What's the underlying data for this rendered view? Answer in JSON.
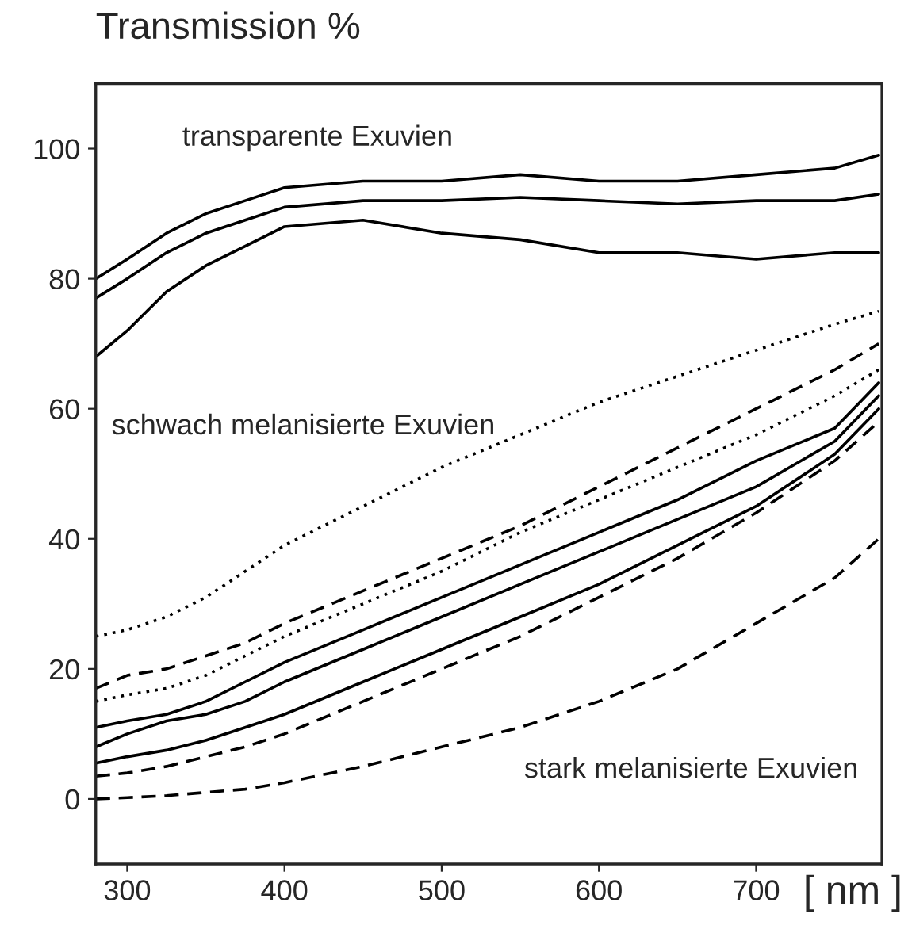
{
  "chart_data": {
    "type": "line",
    "title": "Transmission %",
    "xlabel": "[ nm ]",
    "x": [
      280,
      300,
      325,
      350,
      375,
      400,
      450,
      500,
      550,
      600,
      650,
      700,
      750,
      778
    ],
    "series": [
      {
        "color": "#000000",
        "line_style": "solid",
        "values": [
          77,
          80,
          84,
          87,
          89,
          91,
          92,
          92,
          92.5,
          92,
          91.5,
          92,
          92,
          93
        ]
      },
      {
        "color": "#000000",
        "line_style": "solid",
        "values": [
          80,
          83,
          87,
          90,
          92,
          94,
          95,
          95,
          96,
          95,
          95,
          96,
          97,
          99
        ]
      },
      {
        "color": "#000000",
        "line_style": "solid",
        "values": [
          68,
          72,
          78,
          82,
          85,
          88,
          89,
          87,
          86,
          84,
          84,
          83,
          84,
          84
        ]
      },
      {
        "color": "#000000",
        "line_style": "dotted",
        "values": [
          25,
          26,
          28,
          31,
          35,
          39,
          45,
          51,
          56,
          61,
          65,
          69,
          73,
          75
        ]
      },
      {
        "color": "#000000",
        "line_style": "dashed",
        "values": [
          17,
          19,
          20,
          22,
          24,
          27,
          32,
          37,
          42,
          48,
          54,
          60,
          66,
          70
        ]
      },
      {
        "color": "#000000",
        "line_style": "dotted",
        "values": [
          15,
          16,
          17,
          19,
          22,
          25,
          30,
          35,
          41,
          46,
          51,
          56,
          62,
          66
        ]
      },
      {
        "color": "#000000",
        "line_style": "solid",
        "values": [
          11,
          12,
          13,
          15,
          18,
          21,
          26,
          31,
          36,
          41,
          46,
          52,
          57,
          64
        ]
      },
      {
        "color": "#000000",
        "line_style": "solid",
        "values": [
          8,
          10,
          12,
          13,
          15,
          18,
          23,
          28,
          33,
          38,
          43,
          48,
          55,
          62
        ]
      },
      {
        "color": "#000000",
        "line_style": "solid",
        "values": [
          5.5,
          6.5,
          7.5,
          9,
          11,
          13,
          18,
          23,
          28,
          33,
          39,
          45,
          53,
          60
        ]
      },
      {
        "color": "#000000",
        "line_style": "dashed",
        "values": [
          3.5,
          4,
          5,
          6.5,
          8,
          10,
          15,
          20,
          25,
          31,
          37,
          44,
          52,
          58
        ]
      },
      {
        "color": "#000000",
        "line_style": "dashed",
        "values": [
          0,
          0.2,
          0.5,
          1,
          1.5,
          2.5,
          5,
          8,
          11,
          15,
          20,
          27,
          34,
          40
        ]
      }
    ],
    "xlim": [
      280,
      780
    ],
    "ylim": [
      -10,
      110
    ],
    "xticks": [
      300,
      400,
      500,
      600,
      700
    ],
    "yticks": [
      0,
      20,
      40,
      60,
      80,
      100
    ],
    "grid": false,
    "legend": false,
    "annotations": [
      "transparente Exuvien",
      "schwach melanisierte Exuvien",
      "stark melanisierte Exuvien"
    ]
  }
}
